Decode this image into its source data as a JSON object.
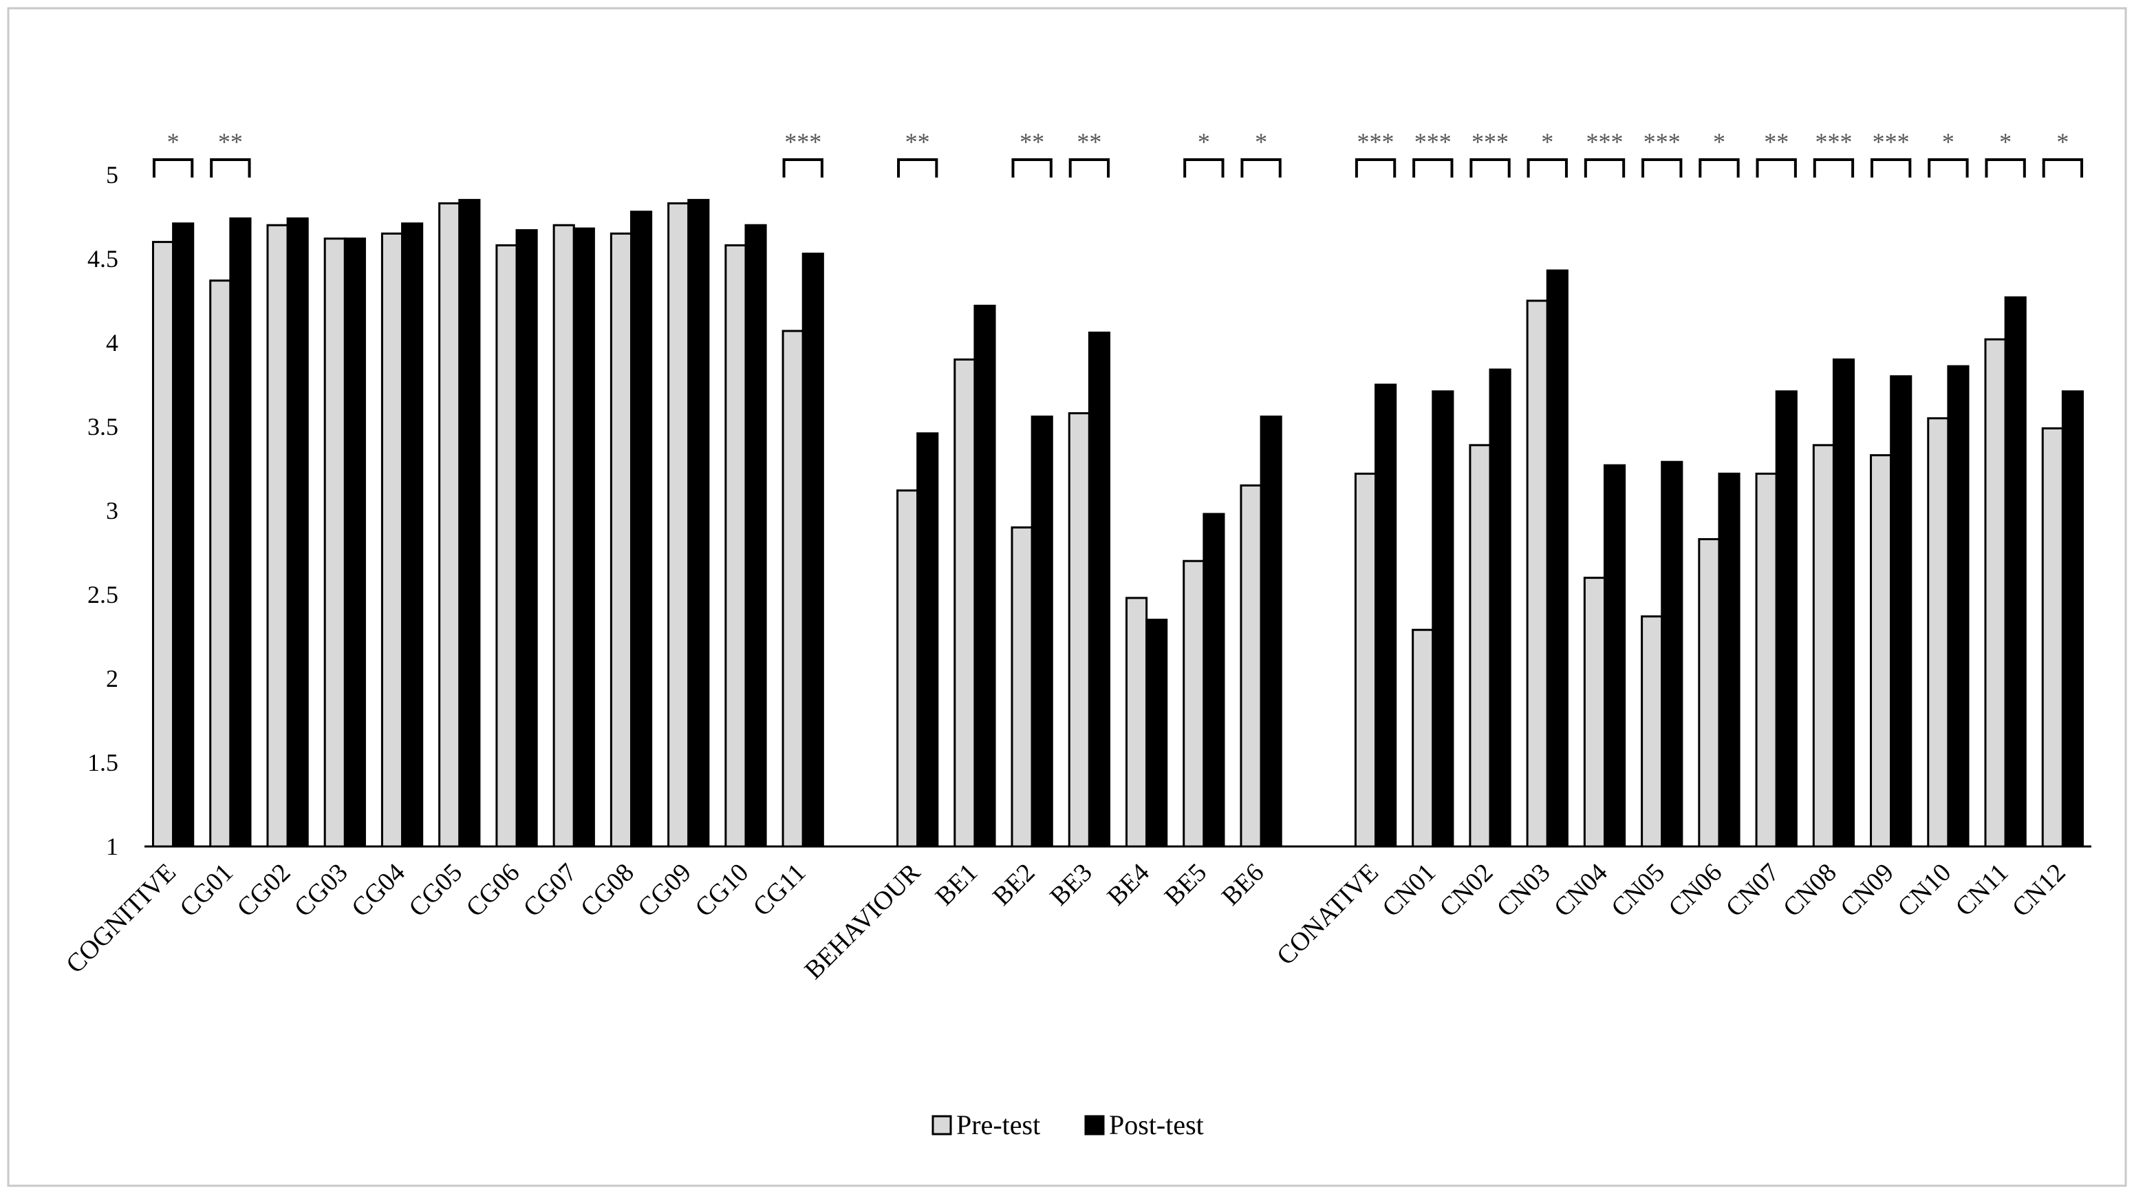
{
  "chart_data": {
    "type": "bar",
    "title": "",
    "xlabel": "",
    "ylabel": "",
    "ylim": [
      1,
      5
    ],
    "yticks": [
      "1",
      "1.5",
      "2",
      "2.5",
      "3",
      "3.5",
      "4",
      "4.5",
      "5"
    ],
    "grid": false,
    "legend_position": "bottom",
    "categories": [
      "COGNITIVE",
      "CG01",
      "CG02",
      "CG03",
      "CG04",
      "CG05",
      "CG06",
      "CG07",
      "CG08",
      "CG09",
      "CG10",
      "CG11",
      "",
      "BEHAVIOUR",
      "BE1",
      "BE2",
      "BE3",
      "BE4",
      "BE5",
      "BE6",
      "",
      "CONATIVE",
      "CN01",
      "CN02",
      "CN03",
      "CN04",
      "CN05",
      "CN06",
      "CN07",
      "CN08",
      "CN09",
      "CN10",
      "CN11",
      "CN12"
    ],
    "series": [
      {
        "name": "Pre-test",
        "color": "#d9d9d9",
        "values": [
          4.6,
          4.37,
          4.7,
          4.62,
          4.65,
          4.83,
          4.58,
          4.7,
          4.65,
          4.83,
          4.58,
          4.07,
          null,
          3.12,
          3.9,
          2.9,
          3.58,
          2.48,
          2.7,
          3.15,
          null,
          3.22,
          2.29,
          3.39,
          4.25,
          2.6,
          2.37,
          2.83,
          3.22,
          3.39,
          3.33,
          3.55,
          4.02,
          3.49
        ]
      },
      {
        "name": "Post-test",
        "color": "#000000",
        "values": [
          4.71,
          4.74,
          4.74,
          4.62,
          4.71,
          4.85,
          4.67,
          4.68,
          4.78,
          4.85,
          4.7,
          4.53,
          null,
          3.46,
          4.22,
          3.56,
          4.06,
          2.35,
          2.98,
          3.56,
          null,
          3.75,
          3.71,
          3.84,
          4.43,
          3.27,
          3.29,
          3.22,
          3.71,
          3.9,
          3.8,
          3.86,
          4.27,
          3.71
        ]
      }
    ],
    "significance": [
      "*",
      "**",
      "",
      "",
      "",
      "",
      "",
      "",
      "",
      "",
      "",
      "***",
      "",
      "**",
      "",
      "**",
      "**",
      "",
      "*",
      "*",
      "",
      "***",
      "***",
      "***",
      "*",
      "***",
      "***",
      "*",
      "**",
      "***",
      "***",
      "*",
      "*",
      "*"
    ]
  }
}
